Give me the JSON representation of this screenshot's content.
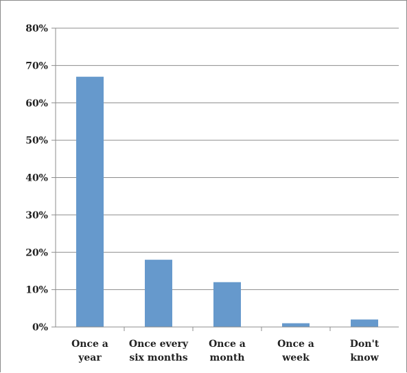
{
  "chart_data": {
    "type": "bar",
    "categories": [
      [
        "Once a",
        "year"
      ],
      [
        "Once every",
        "six months"
      ],
      [
        "Once a",
        "month"
      ],
      [
        "Once a",
        "week"
      ],
      [
        "Don't",
        "know"
      ]
    ],
    "values": [
      67,
      18,
      12,
      1,
      2
    ],
    "title": "",
    "xlabel": "",
    "ylabel": "",
    "ylim": [
      0,
      80
    ],
    "yticks": [
      "0%",
      "10%",
      "20%",
      "30%",
      "40%",
      "50%",
      "60%",
      "70%",
      "80%"
    ],
    "grid": true,
    "legend": "none",
    "bar_color": "#6699cc"
  }
}
